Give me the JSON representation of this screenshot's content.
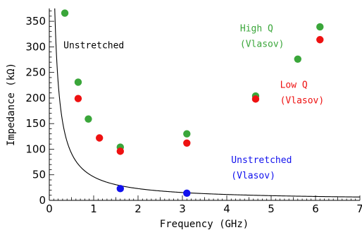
{
  "chart_data": {
    "type": "scatter",
    "xlabel": "Frequency (GHz)",
    "ylabel": "Impedance (kΩ)",
    "xlim": [
      0,
      7
    ],
    "ylim": [
      0,
      375
    ],
    "xticks": [
      0,
      1,
      2,
      3,
      4,
      5,
      6,
      7
    ],
    "yticks": [
      0,
      50,
      100,
      150,
      200,
      250,
      300,
      350
    ],
    "grid": false,
    "series": [
      {
        "name": "High Q (Vlasov)",
        "color": "#3aa63a",
        "points": [
          [
            0.35,
            366
          ],
          [
            0.65,
            231
          ],
          [
            0.88,
            159
          ],
          [
            1.6,
            104
          ],
          [
            3.1,
            130
          ],
          [
            4.65,
            204
          ],
          [
            5.6,
            276
          ],
          [
            6.1,
            339
          ]
        ]
      },
      {
        "name": "Low Q (Vlasov)",
        "color": "#ee1111",
        "points": [
          [
            0.65,
            199
          ],
          [
            1.13,
            122
          ],
          [
            1.6,
            96
          ],
          [
            3.1,
            112
          ],
          [
            4.65,
            198
          ],
          [
            6.1,
            314
          ]
        ]
      },
      {
        "name": "Unstretched (Vlasov)",
        "color": "#1111ee",
        "points": [
          [
            1.6,
            23
          ],
          [
            3.1,
            14
          ]
        ]
      }
    ],
    "curve": {
      "name": "Unstretched",
      "color": "#000000",
      "formula": "y = 46 / x",
      "k": 46
    },
    "annotations": [
      {
        "lines": [
          "Unstretched"
        ],
        "color": "#000000",
        "x": 0.32,
        "y": 297
      },
      {
        "lines": [
          "High Q",
          "(Vlasov)"
        ],
        "color": "#3aa63a",
        "x": 4.3,
        "y": 330
      },
      {
        "lines": [
          "Low Q",
          "(Vlasov)"
        ],
        "color": "#ee1111",
        "x": 5.2,
        "y": 220
      },
      {
        "lines": [
          "Unstretched",
          "(Vlasov)"
        ],
        "color": "#1111ee",
        "x": 4.1,
        "y": 73
      }
    ]
  }
}
